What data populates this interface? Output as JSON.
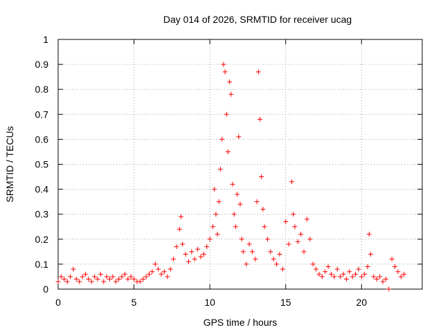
{
  "chart_data": {
    "type": "scatter",
    "title": "Day 014 of 2026, SRMTID for receiver ucag",
    "xlabel": "GPS time / hours",
    "ylabel": "SRMTID / TECUs",
    "xlim": [
      0,
      24
    ],
    "ylim": [
      0,
      1
    ],
    "xticks": [
      0,
      5,
      10,
      15,
      20
    ],
    "yticks": [
      0,
      0.1,
      0.2,
      0.3,
      0.4,
      0.5,
      0.6,
      0.7,
      0.8,
      0.9,
      1
    ],
    "xtick_labels": [
      "0",
      "5",
      "10",
      "15",
      "20"
    ],
    "ytick_labels": [
      "0",
      "0.1",
      "0.2",
      "0.3",
      "0.4",
      "0.5",
      "0.6",
      "0.7",
      "0.8",
      "0.9",
      "1"
    ],
    "grid": true,
    "marker": "plus",
    "series": [
      {
        "name": "SRMTID",
        "color": "#ff0000",
        "points": [
          [
            0.0,
            0.03
          ],
          [
            0.2,
            0.05
          ],
          [
            0.4,
            0.04
          ],
          [
            0.6,
            0.03
          ],
          [
            0.8,
            0.05
          ],
          [
            1.0,
            0.08
          ],
          [
            1.2,
            0.04
          ],
          [
            1.4,
            0.03
          ],
          [
            1.6,
            0.05
          ],
          [
            1.8,
            0.06
          ],
          [
            2.0,
            0.04
          ],
          [
            2.2,
            0.03
          ],
          [
            2.4,
            0.05
          ],
          [
            2.6,
            0.04
          ],
          [
            2.8,
            0.06
          ],
          [
            3.0,
            0.03
          ],
          [
            3.2,
            0.05
          ],
          [
            3.4,
            0.04
          ],
          [
            3.6,
            0.05
          ],
          [
            3.8,
            0.03
          ],
          [
            4.0,
            0.04
          ],
          [
            4.2,
            0.05
          ],
          [
            4.4,
            0.06
          ],
          [
            4.6,
            0.04
          ],
          [
            4.8,
            0.05
          ],
          [
            5.0,
            0.04
          ],
          [
            5.2,
            0.03
          ],
          [
            5.4,
            0.03
          ],
          [
            5.6,
            0.04
          ],
          [
            5.8,
            0.05
          ],
          [
            6.0,
            0.06
          ],
          [
            6.2,
            0.07
          ],
          [
            6.4,
            0.1
          ],
          [
            6.6,
            0.08
          ],
          [
            6.8,
            0.06
          ],
          [
            7.0,
            0.07
          ],
          [
            7.2,
            0.05
          ],
          [
            7.4,
            0.08
          ],
          [
            7.6,
            0.12
          ],
          [
            7.8,
            0.17
          ],
          [
            8.0,
            0.24
          ],
          [
            8.1,
            0.29
          ],
          [
            8.2,
            0.18
          ],
          [
            8.4,
            0.14
          ],
          [
            8.6,
            0.11
          ],
          [
            8.8,
            0.15
          ],
          [
            9.0,
            0.12
          ],
          [
            9.2,
            0.16
          ],
          [
            9.4,
            0.13
          ],
          [
            9.6,
            0.14
          ],
          [
            9.8,
            0.17
          ],
          [
            10.0,
            0.2
          ],
          [
            10.2,
            0.25
          ],
          [
            10.3,
            0.4
          ],
          [
            10.4,
            0.3
          ],
          [
            10.5,
            0.22
          ],
          [
            10.6,
            0.35
          ],
          [
            10.7,
            0.48
          ],
          [
            10.8,
            0.6
          ],
          [
            10.9,
            0.9
          ],
          [
            11.0,
            0.87
          ],
          [
            11.1,
            0.7
          ],
          [
            11.2,
            0.55
          ],
          [
            11.3,
            0.83
          ],
          [
            11.4,
            0.78
          ],
          [
            11.5,
            0.42
          ],
          [
            11.6,
            0.3
          ],
          [
            11.7,
            0.25
          ],
          [
            11.8,
            0.38
          ],
          [
            11.9,
            0.61
          ],
          [
            12.0,
            0.34
          ],
          [
            12.1,
            0.2
          ],
          [
            12.2,
            0.15
          ],
          [
            12.4,
            0.1
          ],
          [
            12.6,
            0.18
          ],
          [
            12.8,
            0.15
          ],
          [
            13.0,
            0.12
          ],
          [
            13.1,
            0.35
          ],
          [
            13.2,
            0.87
          ],
          [
            13.3,
            0.68
          ],
          [
            13.4,
            0.45
          ],
          [
            13.5,
            0.32
          ],
          [
            13.6,
            0.25
          ],
          [
            13.8,
            0.2
          ],
          [
            14.0,
            0.15
          ],
          [
            14.2,
            0.12
          ],
          [
            14.4,
            0.1
          ],
          [
            14.6,
            0.14
          ],
          [
            14.8,
            0.08
          ],
          [
            15.0,
            0.27
          ],
          [
            15.2,
            0.18
          ],
          [
            15.4,
            0.43
          ],
          [
            15.5,
            0.3
          ],
          [
            15.6,
            0.25
          ],
          [
            15.8,
            0.19
          ],
          [
            16.0,
            0.22
          ],
          [
            16.2,
            0.15
          ],
          [
            16.4,
            0.28
          ],
          [
            16.6,
            0.2
          ],
          [
            16.8,
            0.1
          ],
          [
            17.0,
            0.08
          ],
          [
            17.2,
            0.06
          ],
          [
            17.4,
            0.05
          ],
          [
            17.6,
            0.07
          ],
          [
            17.8,
            0.09
          ],
          [
            18.0,
            0.06
          ],
          [
            18.2,
            0.05
          ],
          [
            18.4,
            0.08
          ],
          [
            18.6,
            0.05
          ],
          [
            18.8,
            0.06
          ],
          [
            19.0,
            0.04
          ],
          [
            19.2,
            0.07
          ],
          [
            19.4,
            0.05
          ],
          [
            19.6,
            0.06
          ],
          [
            19.8,
            0.08
          ],
          [
            20.0,
            0.05
          ],
          [
            20.2,
            0.06
          ],
          [
            20.4,
            0.09
          ],
          [
            20.5,
            0.22
          ],
          [
            20.6,
            0.14
          ],
          [
            20.8,
            0.05
          ],
          [
            21.0,
            0.04
          ],
          [
            21.2,
            0.05
          ],
          [
            21.4,
            0.03
          ],
          [
            21.6,
            0.04
          ],
          [
            21.8,
            0.0
          ],
          [
            22.0,
            0.12
          ],
          [
            22.2,
            0.09
          ],
          [
            22.4,
            0.07
          ],
          [
            22.6,
            0.05
          ],
          [
            22.8,
            0.06
          ]
        ]
      }
    ]
  }
}
